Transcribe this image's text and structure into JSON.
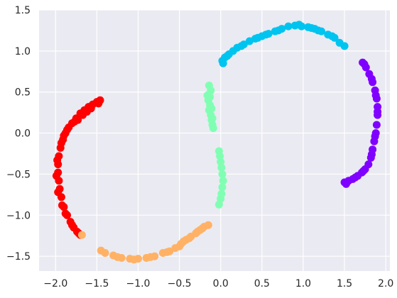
{
  "chart_data": {
    "type": "scatter",
    "title": "",
    "xlabel": "",
    "ylabel": "",
    "xlim": [
      -2.2,
      2.05
    ],
    "ylim": [
      -1.68,
      1.5
    ],
    "xticks": [
      -2.0,
      -1.5,
      -1.0,
      -0.5,
      0.0,
      0.5,
      1.0,
      1.5,
      2.0
    ],
    "yticks": [
      1.5,
      1.0,
      0.5,
      0.0,
      -0.5,
      -1.0,
      -1.5
    ],
    "xtick_labels": [
      "−2.0",
      "−1.5",
      "−1.0",
      "−0.5",
      "0.0",
      "0.5",
      "1.0",
      "1.5",
      "2.0"
    ],
    "ytick_labels": [
      "1.5",
      "1.0",
      "0.5",
      "0.0",
      "−0.5",
      "−1.0",
      "−1.5"
    ],
    "grid": true,
    "legend": "none",
    "background_color": "#eaeaf2",
    "grid_color": "#ffffff",
    "series": [
      {
        "color": "#ff0000",
        "points": [
          [
            -1.46,
            0.4
          ],
          [
            -1.5,
            0.38
          ],
          [
            -1.55,
            0.35
          ],
          [
            -1.6,
            0.32
          ],
          [
            -1.65,
            0.28
          ],
          [
            -1.7,
            0.24
          ],
          [
            -1.75,
            0.18
          ],
          [
            -1.8,
            0.12
          ],
          [
            -1.84,
            0.07
          ],
          [
            -1.88,
            0.0
          ],
          [
            -1.91,
            -0.08
          ],
          [
            -1.94,
            -0.18
          ],
          [
            -1.96,
            -0.28
          ],
          [
            -1.97,
            -0.38
          ],
          [
            -1.97,
            -0.48
          ],
          [
            -1.96,
            -0.58
          ],
          [
            -1.95,
            -0.68
          ],
          [
            -1.93,
            -0.78
          ],
          [
            -1.9,
            -0.9
          ],
          [
            -1.86,
            -1.0
          ],
          [
            -1.82,
            -1.08
          ],
          [
            -1.78,
            -1.15
          ],
          [
            -1.74,
            -1.2
          ],
          [
            -1.7,
            -1.24
          ],
          [
            -1.48,
            0.36
          ],
          [
            -1.57,
            0.3
          ],
          [
            -1.67,
            0.22
          ],
          [
            -1.77,
            0.14
          ],
          [
            -1.86,
            0.04
          ],
          [
            -1.93,
            -0.12
          ],
          [
            -1.98,
            -0.33
          ],
          [
            -1.99,
            -0.52
          ],
          [
            -1.97,
            -0.72
          ],
          [
            -1.92,
            -0.88
          ],
          [
            -1.88,
            -0.98
          ],
          [
            -1.8,
            -1.12
          ],
          [
            -1.72,
            -1.22
          ],
          [
            -1.62,
            0.26
          ],
          [
            -1.73,
            0.16
          ],
          [
            -1.9,
            -0.03
          ]
        ]
      },
      {
        "color": "#ffb266",
        "points": [
          [
            -1.68,
            -1.24
          ],
          [
            -1.45,
            -1.43
          ],
          [
            -1.4,
            -1.46
          ],
          [
            -1.3,
            -1.49
          ],
          [
            -1.2,
            -1.52
          ],
          [
            -1.1,
            -1.53
          ],
          [
            -1.0,
            -1.53
          ],
          [
            -0.9,
            -1.52
          ],
          [
            -0.8,
            -1.5
          ],
          [
            -0.7,
            -1.46
          ],
          [
            -0.62,
            -1.44
          ],
          [
            -0.55,
            -1.4
          ],
          [
            -0.48,
            -1.35
          ],
          [
            -0.42,
            -1.3
          ],
          [
            -0.36,
            -1.26
          ],
          [
            -0.3,
            -1.22
          ],
          [
            -0.25,
            -1.18
          ],
          [
            -0.2,
            -1.14
          ],
          [
            -0.15,
            -1.12
          ],
          [
            -1.25,
            -1.51
          ],
          [
            -1.05,
            -1.54
          ],
          [
            -0.85,
            -1.51
          ],
          [
            -0.65,
            -1.45
          ],
          [
            -0.5,
            -1.38
          ],
          [
            -0.38,
            -1.28
          ],
          [
            -0.28,
            -1.2
          ],
          [
            -0.45,
            -1.32
          ],
          [
            -0.22,
            -1.16
          ]
        ]
      },
      {
        "color": "#80ffb3",
        "points": [
          [
            -0.14,
            0.58
          ],
          [
            -0.12,
            0.52
          ],
          [
            -0.16,
            0.46
          ],
          [
            -0.15,
            0.4
          ],
          [
            -0.13,
            0.34
          ],
          [
            -0.14,
            0.28
          ],
          [
            -0.12,
            0.22
          ],
          [
            -0.11,
            0.16
          ],
          [
            -0.1,
            0.1
          ],
          [
            -0.09,
            0.06
          ],
          [
            -0.02,
            -0.22
          ],
          [
            -0.01,
            -0.28
          ],
          [
            0.0,
            -0.35
          ],
          [
            0.01,
            -0.42
          ],
          [
            0.02,
            -0.5
          ],
          [
            0.03,
            -0.58
          ],
          [
            0.02,
            -0.66
          ],
          [
            0.01,
            -0.74
          ],
          [
            0.0,
            -0.8
          ],
          [
            -0.02,
            -0.87
          ],
          [
            -0.13,
            0.44
          ],
          [
            -0.11,
            0.3
          ],
          [
            -0.1,
            0.18
          ]
        ]
      },
      {
        "color": "#00c4f0",
        "points": [
          [
            0.02,
            0.88
          ],
          [
            0.05,
            0.92
          ],
          [
            0.1,
            0.96
          ],
          [
            0.15,
            1.0
          ],
          [
            0.2,
            1.04
          ],
          [
            0.28,
            1.08
          ],
          [
            0.35,
            1.12
          ],
          [
            0.42,
            1.15
          ],
          [
            0.5,
            1.18
          ],
          [
            0.58,
            1.21
          ],
          [
            0.66,
            1.24
          ],
          [
            0.74,
            1.27
          ],
          [
            0.82,
            1.3
          ],
          [
            0.9,
            1.31
          ],
          [
            0.98,
            1.3
          ],
          [
            1.06,
            1.29
          ],
          [
            1.14,
            1.27
          ],
          [
            1.22,
            1.24
          ],
          [
            1.3,
            1.2
          ],
          [
            1.38,
            1.16
          ],
          [
            1.44,
            1.1
          ],
          [
            1.5,
            1.06
          ],
          [
            0.08,
            0.94
          ],
          [
            0.25,
            1.06
          ],
          [
            0.45,
            1.16
          ],
          [
            0.7,
            1.25
          ],
          [
            0.95,
            1.32
          ],
          [
            1.18,
            1.25
          ],
          [
            1.35,
            1.18
          ],
          [
            0.03,
            0.85
          ],
          [
            0.55,
            1.2
          ],
          [
            1.1,
            1.28
          ]
        ]
      },
      {
        "color": "#8000ff",
        "points": [
          [
            1.72,
            0.86
          ],
          [
            1.76,
            0.8
          ],
          [
            1.8,
            0.72
          ],
          [
            1.84,
            0.62
          ],
          [
            1.87,
            0.52
          ],
          [
            1.89,
            0.42
          ],
          [
            1.9,
            0.32
          ],
          [
            1.9,
            0.22
          ],
          [
            1.89,
            0.1
          ],
          [
            1.88,
            0.0
          ],
          [
            1.86,
            -0.1
          ],
          [
            1.84,
            -0.2
          ],
          [
            1.82,
            -0.3
          ],
          [
            1.79,
            -0.38
          ],
          [
            1.75,
            -0.44
          ],
          [
            1.71,
            -0.48
          ],
          [
            1.66,
            -0.52
          ],
          [
            1.6,
            -0.56
          ],
          [
            1.55,
            -0.58
          ],
          [
            1.5,
            -0.6
          ],
          [
            1.74,
            0.84
          ],
          [
            1.83,
            0.66
          ],
          [
            1.88,
            0.46
          ],
          [
            1.9,
            0.26
          ],
          [
            1.87,
            -0.04
          ],
          [
            1.83,
            -0.26
          ],
          [
            1.73,
            -0.46
          ],
          [
            1.63,
            -0.54
          ],
          [
            1.52,
            -0.62
          ]
        ]
      }
    ]
  }
}
